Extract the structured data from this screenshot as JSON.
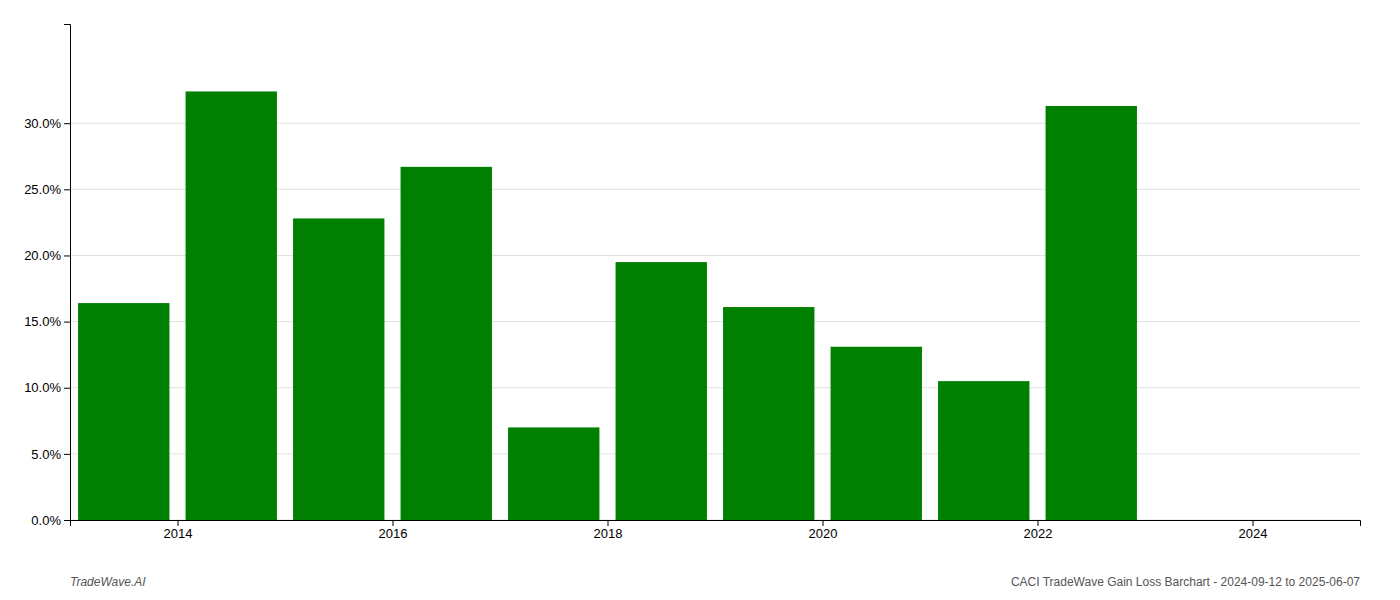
{
  "chart_data": {
    "type": "bar",
    "x": [
      2013.5,
      2014.5,
      2015.5,
      2016.5,
      2017.5,
      2018.5,
      2019.5,
      2020.5,
      2021.5,
      2022.5
    ],
    "values": [
      0.164,
      0.324,
      0.228,
      0.267,
      0.07,
      0.195,
      0.161,
      0.131,
      0.105,
      0.313
    ],
    "color": "#008000",
    "xlim": [
      2013.0,
      2025.0
    ],
    "xticks": [
      2014,
      2016,
      2018,
      2020,
      2022,
      2024
    ],
    "ylim": [
      0,
      0.375
    ],
    "yticks": [
      {
        "value": 0.0,
        "label": "0.0%"
      },
      {
        "value": 0.05,
        "label": "5.0%"
      },
      {
        "value": 0.1,
        "label": "10.0%"
      },
      {
        "value": 0.15,
        "label": "15.0%"
      },
      {
        "value": 0.2,
        "label": "20.0%"
      },
      {
        "value": 0.25,
        "label": "25.0%"
      },
      {
        "value": 0.3,
        "label": "30.0%"
      }
    ],
    "grid": true,
    "annotations": [
      "TradeWave.AI",
      "CACI TradeWave Gain Loss Barchart - 2024-09-12 to 2025-06-07"
    ]
  }
}
